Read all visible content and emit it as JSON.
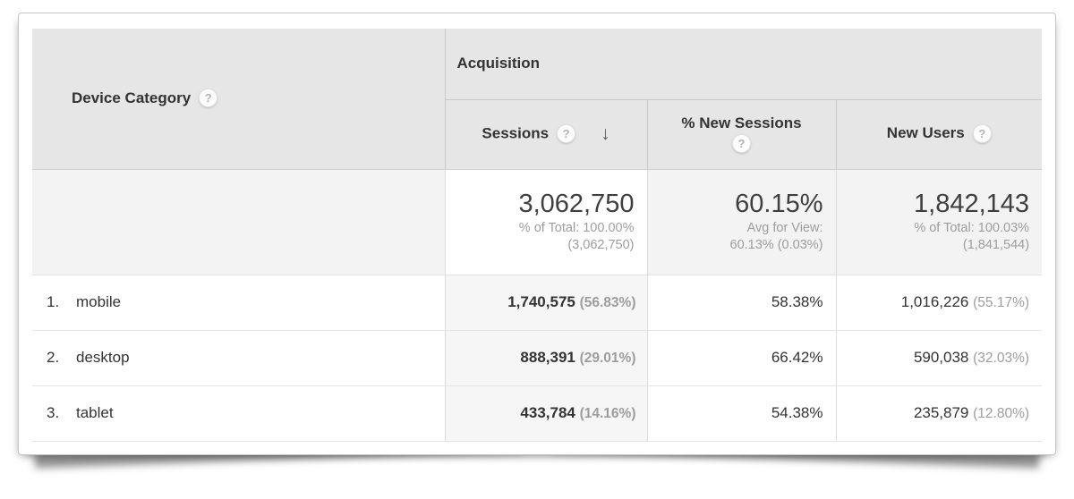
{
  "chart_data": {
    "type": "table",
    "title": "Device Category — Acquisition",
    "columns": [
      "Device Category",
      "Sessions",
      "% New Sessions",
      "New Users"
    ],
    "rows": [
      [
        "mobile",
        1740575,
        58.38,
        1016226
      ],
      [
        "desktop",
        888391,
        66.42,
        590038
      ],
      [
        "tablet",
        433784,
        54.38,
        235879
      ]
    ],
    "totals": {
      "sessions": 3062750,
      "pct_new_sessions": 60.15,
      "new_users": 1842143
    },
    "sorted_by": "Sessions",
    "sort_direction": "descending"
  },
  "table": {
    "dimension_header": "Device Category",
    "group_header": "Acquisition",
    "metrics": {
      "sessions": "Sessions",
      "pct_new_sessions": "% New Sessions",
      "new_users": "New Users"
    },
    "summary": {
      "sessions_value": "3,062,750",
      "sessions_sub1": "% of Total: 100.00%",
      "sessions_sub2": "(3,062,750)",
      "pns_value": "60.15%",
      "pns_sub1": "Avg for View:",
      "pns_sub2": "60.13% (0.03%)",
      "nu_value": "1,842,143",
      "nu_sub1": "% of Total: 100.03%",
      "nu_sub2": "(1,841,544)"
    },
    "rows": [
      {
        "rank": "1.",
        "label": "mobile",
        "sessions": "1,740,575",
        "sessions_pct": "(56.83%)",
        "pct_new_sessions": "58.38%",
        "new_users": "1,016,226",
        "new_users_pct": "(55.17%)"
      },
      {
        "rank": "2.",
        "label": "desktop",
        "sessions": "888,391",
        "sessions_pct": "(29.01%)",
        "pct_new_sessions": "66.42%",
        "new_users": "590,038",
        "new_users_pct": "(32.03%)"
      },
      {
        "rank": "3.",
        "label": "tablet",
        "sessions": "433,784",
        "sessions_pct": "(14.16%)",
        "pct_new_sessions": "54.38%",
        "new_users": "235,879",
        "new_users_pct": "(12.80%)"
      }
    ]
  },
  "icons": {
    "help": "?",
    "sort_desc": "↓"
  },
  "colors": {
    "header_bg": "#e6e6e6",
    "summary_bg": "#f3f3f3",
    "sorted_column_bg": "#f6f6f6",
    "text": "#333333",
    "muted_text": "#9d9d9d"
  }
}
